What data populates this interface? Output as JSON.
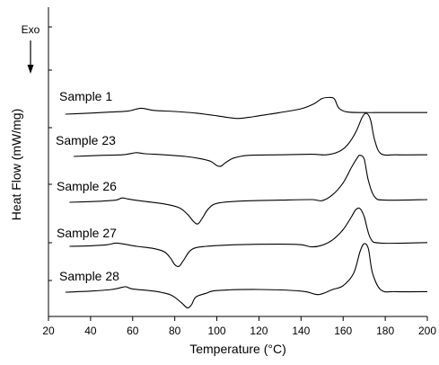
{
  "chart_data": {
    "type": "line",
    "xlabel": "Temperature (°C)",
    "ylabel": "Heat Flow (mW/mg)",
    "annotation": "Exo",
    "xlim": [
      20,
      200
    ],
    "xticks": [
      20,
      40,
      60,
      80,
      100,
      120,
      140,
      160,
      180,
      200
    ],
    "yticks": false,
    "grid": false,
    "series": [
      {
        "name": "Sample 1",
        "x": [
          28,
          40,
          50,
          58,
          64,
          70,
          80,
          90,
          100,
          105,
          110,
          115,
          120,
          130,
          140,
          146,
          150,
          154,
          156,
          158,
          162,
          170,
          180,
          200
        ],
        "y": [
          0,
          0.04,
          0.08,
          0.12,
          0.22,
          0.14,
          0.1,
          0.04,
          -0.06,
          -0.12,
          -0.16,
          -0.12,
          -0.06,
          0.06,
          0.2,
          0.38,
          0.58,
          0.62,
          0.55,
          0.22,
          0.08,
          0.06,
          0.06,
          0.06
        ]
      },
      {
        "name": "Sample 23",
        "x": [
          32,
          45,
          55,
          60,
          62,
          66,
          75,
          85,
          92,
          97,
          100,
          102,
          104,
          108,
          115,
          130,
          145,
          152,
          158,
          162,
          166,
          169,
          171,
          173,
          175,
          178,
          185,
          200
        ],
        "y": [
          0,
          0.04,
          0.06,
          0.12,
          0.14,
          0.1,
          0.06,
          0.0,
          -0.08,
          -0.18,
          -0.34,
          -0.36,
          -0.24,
          -0.06,
          0.04,
          0.06,
          0.08,
          0.06,
          0.18,
          0.42,
          0.9,
          1.44,
          1.6,
          1.36,
          0.6,
          0.1,
          0.06,
          0.06
        ]
      },
      {
        "name": "Sample 26",
        "x": [
          30,
          45,
          52,
          55,
          58,
          65,
          75,
          82,
          86,
          89,
          91,
          93,
          96,
          100,
          110,
          130,
          145,
          150,
          155,
          160,
          164,
          167,
          168,
          170,
          172,
          175,
          180,
          200
        ],
        "y": [
          0,
          0.04,
          0.08,
          0.16,
          0.12,
          0.04,
          -0.06,
          -0.2,
          -0.44,
          -0.72,
          -0.8,
          -0.6,
          -0.24,
          -0.04,
          0.04,
          0.08,
          0.1,
          0.06,
          0.28,
          0.72,
          1.3,
          1.68,
          1.74,
          1.6,
          0.8,
          0.2,
          0.08,
          0.1
        ]
      },
      {
        "name": "Sample 27",
        "x": [
          30,
          40,
          48,
          52,
          56,
          62,
          70,
          75,
          78,
          80,
          82,
          84,
          88,
          95,
          110,
          130,
          140,
          145,
          150,
          155,
          160,
          164,
          166,
          168,
          170,
          173,
          178,
          200
        ],
        "y": [
          0,
          0.02,
          0.06,
          0.12,
          0.08,
          0.0,
          -0.08,
          -0.2,
          -0.44,
          -0.68,
          -0.74,
          -0.54,
          -0.12,
          0.0,
          0.06,
          0.08,
          0.06,
          -0.02,
          0.04,
          0.24,
          0.62,
          1.1,
          1.36,
          1.4,
          1.1,
          0.3,
          0.12,
          0.14
        ]
      },
      {
        "name": "Sample 28",
        "x": [
          28,
          40,
          50,
          55,
          57,
          60,
          70,
          78,
          83,
          86,
          88,
          90,
          95,
          100,
          120,
          140,
          147,
          150,
          155,
          160,
          165,
          168,
          170,
          172,
          174,
          178,
          185,
          200
        ],
        "y": [
          0,
          0.04,
          0.1,
          0.18,
          0.2,
          0.12,
          0.04,
          -0.1,
          -0.38,
          -0.58,
          -0.46,
          -0.18,
          -0.04,
          0.06,
          0.1,
          0.04,
          -0.08,
          -0.06,
          0.1,
          0.24,
          0.7,
          1.5,
          1.8,
          1.6,
          0.7,
          0.08,
          0.02,
          0.02
        ]
      }
    ]
  }
}
